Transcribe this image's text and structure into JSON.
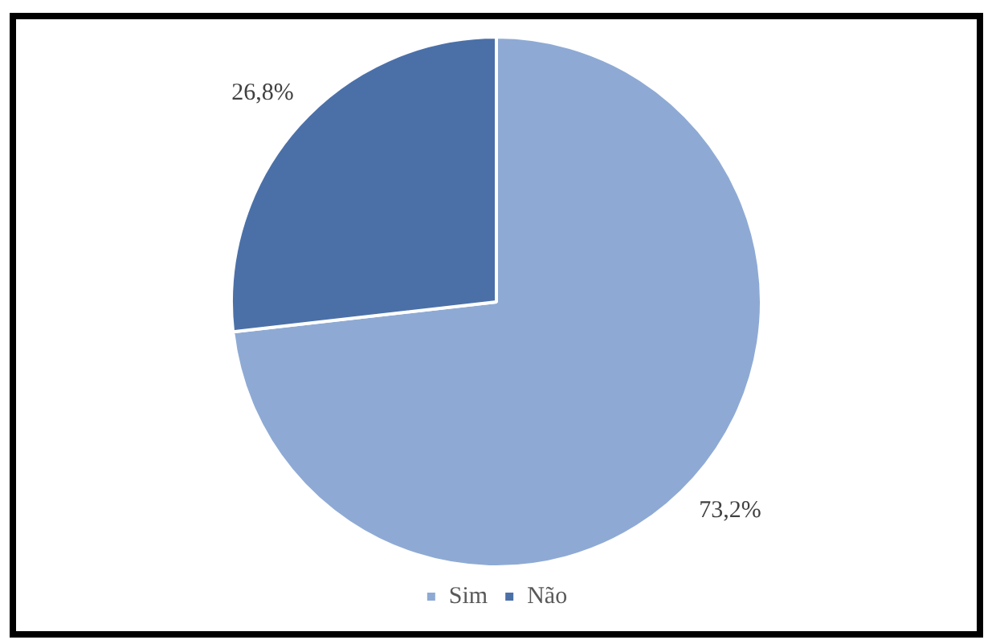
{
  "chart_data": {
    "type": "pie",
    "categories": [
      "Sim",
      "Não"
    ],
    "values": [
      73.2,
      26.8
    ],
    "colors": [
      "#8eaad4",
      "#4b70a8"
    ],
    "value_labels": [
      "73,2%",
      "26,8%"
    ],
    "legend": "bottom"
  }
}
